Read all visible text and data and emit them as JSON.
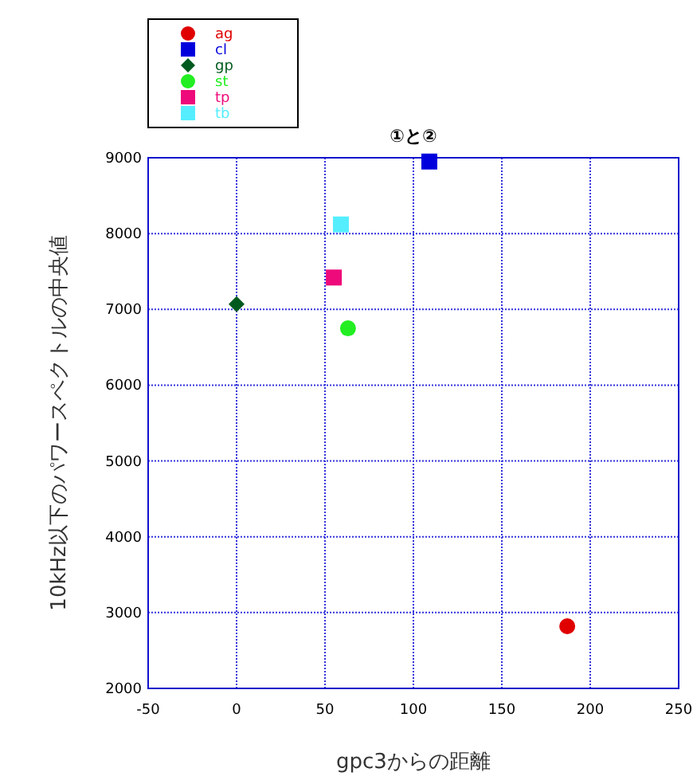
{
  "chart_data": {
    "type": "scatter",
    "title": "①と②",
    "xlabel": "gpc3からの距離",
    "ylabel": "10kHz以下のパワースペクトルの中央値",
    "xlim": [
      -50,
      250
    ],
    "xticks": [
      -50,
      0,
      50,
      100,
      150,
      200,
      250
    ],
    "ylim": [
      2000,
      9000
    ],
    "yticks": [
      2000,
      3000,
      4000,
      5000,
      6000,
      7000,
      8000,
      9000
    ],
    "grid": true,
    "legend": "top left",
    "series": [
      {
        "name": "ag",
        "color": "#e00000",
        "marker": "circle",
        "x": [
          187
        ],
        "values": [
          2820
        ]
      },
      {
        "name": "cl",
        "color": "#0000dd",
        "marker": "square",
        "x": [
          109
        ],
        "values": [
          8950
        ]
      },
      {
        "name": "gp",
        "color": "#005a1e",
        "marker": "diamond",
        "x": [
          0
        ],
        "values": [
          7070
        ]
      },
      {
        "name": "st",
        "color": "#22ee22",
        "marker": "circle",
        "x": [
          63
        ],
        "values": [
          6750
        ]
      },
      {
        "name": "tp",
        "color": "#ee0a7a",
        "marker": "square",
        "x": [
          55
        ],
        "values": [
          7420
        ]
      },
      {
        "name": "tb",
        "color": "#55eeff",
        "marker": "square",
        "x": [
          59
        ],
        "values": [
          8120
        ]
      }
    ]
  }
}
